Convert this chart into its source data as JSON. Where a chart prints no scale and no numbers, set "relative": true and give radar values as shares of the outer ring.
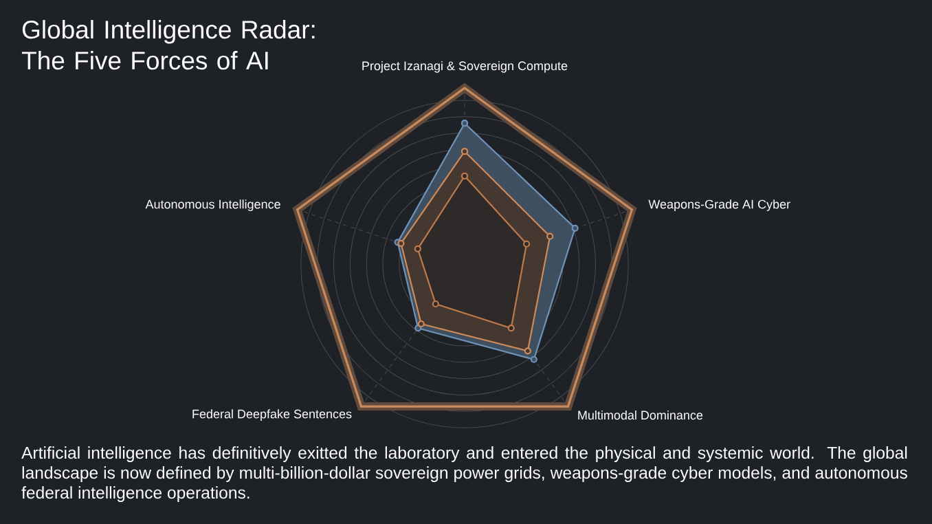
{
  "chart_data": {
    "type": "radar",
    "title": "Global Intelligence Radar: The Five Forces of AI",
    "categories": [
      "Project Izanagi & Sovereign Compute",
      "Weapons-Grade AI Cyber",
      "Multimodal Dominance",
      "Federal Deepfake Sentences",
      "Autonomous Intelligence"
    ],
    "relative": true,
    "grid": true,
    "marker": "circle",
    "series": [
      {
        "color": "#6f93b8",
        "values": [
          0.8,
          0.66,
          0.67,
          0.45,
          0.4
        ]
      },
      {
        "color": "#d08a57",
        "values": [
          0.64,
          0.51,
          0.61,
          0.42,
          0.38
        ]
      },
      {
        "color": "#c07a4a",
        "values": [
          0.5,
          0.37,
          0.45,
          0.28,
          0.28
        ]
      }
    ],
    "annotations": [
      "Artificial intelligence has definitively exitted the laboratory and entered the physical and systemic world. The global landscape is now defined by multi-billion-dollar sovereign power grids, weapons-grade cyber models, and autonomous federal intelligence operations."
    ]
  }
}
